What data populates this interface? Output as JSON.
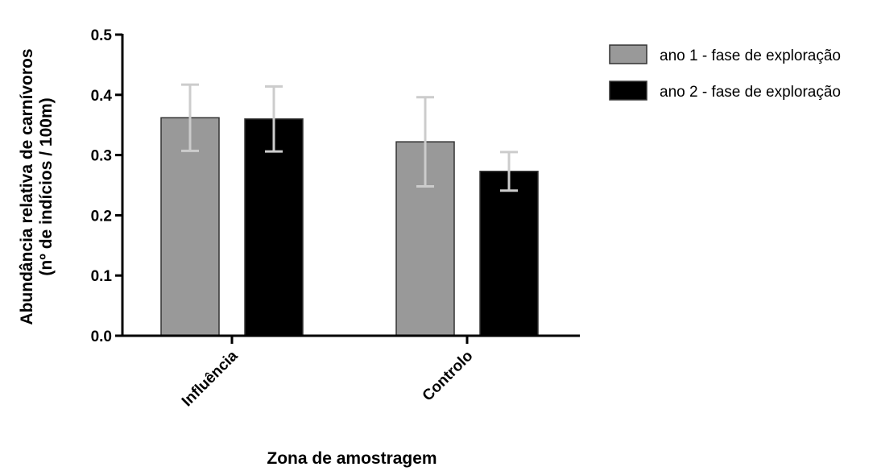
{
  "chart_data": {
    "type": "bar",
    "title": "",
    "xlabel": "Zona de amostragem",
    "ylabel_line1": "Abundância relativa de carnívoros",
    "ylabel_line2": "(nº de indícios / 100m)",
    "ylim": [
      0,
      0.5
    ],
    "yticks": [
      "0.0",
      "0.1",
      "0.2",
      "0.3",
      "0.4",
      "0.5"
    ],
    "categories": [
      "Influência",
      "Controlo"
    ],
    "series": [
      {
        "name": "ano 1 - fase de exploração",
        "color": "#999999",
        "values": [
          0.362,
          0.322
        ],
        "errors": [
          0.055,
          0.074
        ]
      },
      {
        "name": "ano 2 - fase de exploração",
        "color": "#000000",
        "values": [
          0.36,
          0.273
        ],
        "errors": [
          0.054,
          0.032
        ]
      }
    ],
    "error_bar_color": "#cccccc",
    "legend_position": "top-right",
    "grid": false
  }
}
